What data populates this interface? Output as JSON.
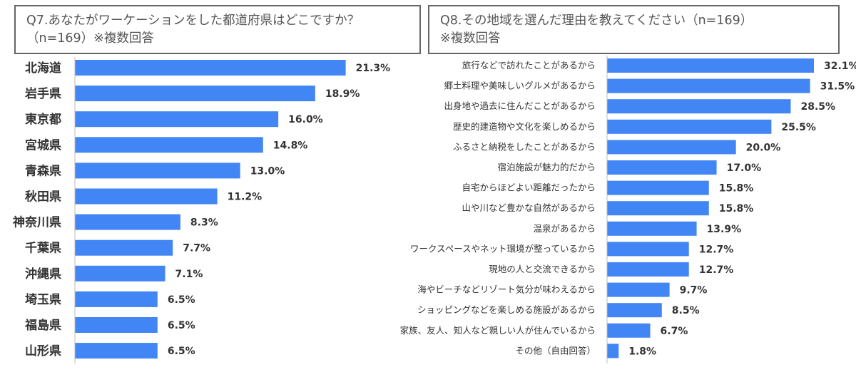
{
  "panels": {
    "q7": {
      "question_line1": "Q7.あなたがワーケーションをした都道府県はどこですか？",
      "question_line2": "（n=169）※複数回答"
    },
    "q8": {
      "question_line1": "Q8.その地域を選んだ理由を教えてください（n=169）",
      "question_line2": "※複数回答"
    }
  },
  "colors": {
    "bar": "#4285F4",
    "axis": "#bbbbbb"
  },
  "chart_data": [
    {
      "type": "bar",
      "orientation": "horizontal",
      "title": "Q7.あなたがワーケーションをした都道府県はどこですか？（n=169）※複数回答",
      "categories": [
        "北海道",
        "岩手県",
        "東京都",
        "宮城県",
        "青森県",
        "秋田県",
        "神奈川県",
        "千葉県",
        "沖縄県",
        "埼玉県",
        "福島県",
        "山形県"
      ],
      "values": [
        21.3,
        18.9,
        16.0,
        14.8,
        13.0,
        11.2,
        8.3,
        7.7,
        7.1,
        6.5,
        6.5,
        6.5
      ],
      "value_labels": [
        "21.3%",
        "18.9%",
        "16.0%",
        "14.8%",
        "13.0%",
        "11.2%",
        "8.3%",
        "7.7%",
        "7.1%",
        "6.5%",
        "6.5%",
        "6.5%"
      ],
      "xlim": [
        0,
        22.5
      ],
      "grid": false
    },
    {
      "type": "bar",
      "orientation": "horizontal",
      "title": "Q8.その地域を選んだ理由を教えてください（n=169）※複数回答",
      "categories": [
        "旅行などで訪れたことがあるから",
        "郷土料理や美味しいグルメがあるから",
        "出身地や過去に住んだことがあるから",
        "歴史的建造物や文化を楽しめるから",
        "ふるさと納税をしたことがあるから",
        "宿泊施設が魅力的だから",
        "自宅からほどよい距離だったから",
        "山や川など豊かな自然があるから",
        "温泉があるから",
        "ワークスペースやネット環境が整っているから",
        "現地の人と交流できるから",
        "海やビーチなどリゾート気分が味わえるから",
        "ショッピングなどを楽しめる施設があるから",
        "家族、友人、知人など親しい人が住んでいるから",
        "その他（自由回答）"
      ],
      "values": [
        32.1,
        31.5,
        28.5,
        25.5,
        20.0,
        17.0,
        15.8,
        15.8,
        13.9,
        12.7,
        12.7,
        9.7,
        8.5,
        6.7,
        1.8
      ],
      "value_labels": [
        "32.1%",
        "31.5%",
        "28.5%",
        "25.5%",
        "20.0%",
        "17.0%",
        "15.8%",
        "15.8%",
        "13.9%",
        "12.7%",
        "12.7%",
        "9.7%",
        "8.5%",
        "6.7%",
        "1.8%"
      ],
      "xlim": [
        0,
        32.1
      ],
      "grid": false
    }
  ]
}
